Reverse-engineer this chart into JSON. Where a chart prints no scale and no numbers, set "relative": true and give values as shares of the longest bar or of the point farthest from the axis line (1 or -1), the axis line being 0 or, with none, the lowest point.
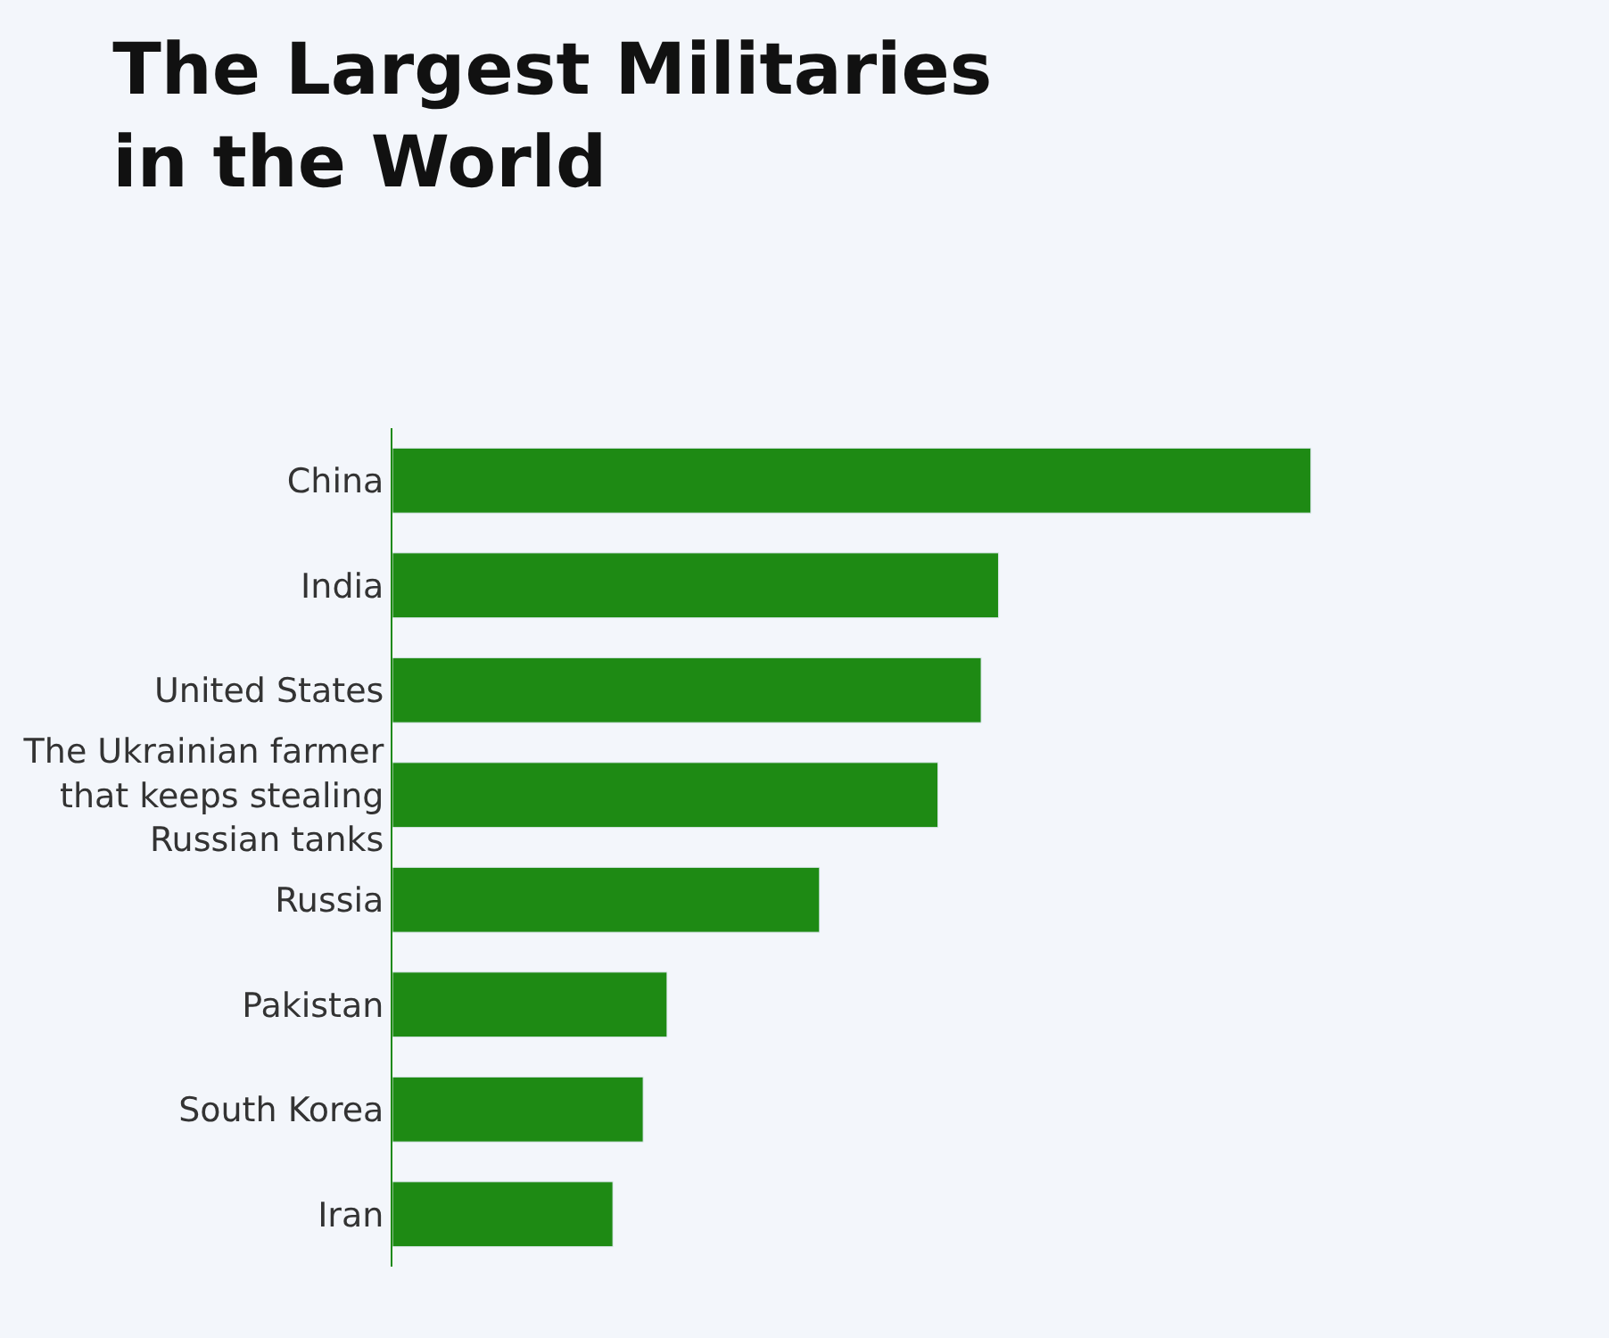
{
  "chart_data": {
    "type": "bar",
    "orientation": "horizontal",
    "relative": true,
    "title": "The Largest Militaries in the World",
    "categories": [
      "China",
      "India",
      "United States",
      "The Ukrainian farmer that keeps stealing Russian tanks",
      "Russia",
      "Pakistan",
      "South Korea",
      "Iran"
    ],
    "values": [
      1,
      0.66,
      0.641,
      0.594,
      0.465,
      0.299,
      0.273,
      0.24
    ],
    "color": "#1e8a14",
    "legend": false
  }
}
